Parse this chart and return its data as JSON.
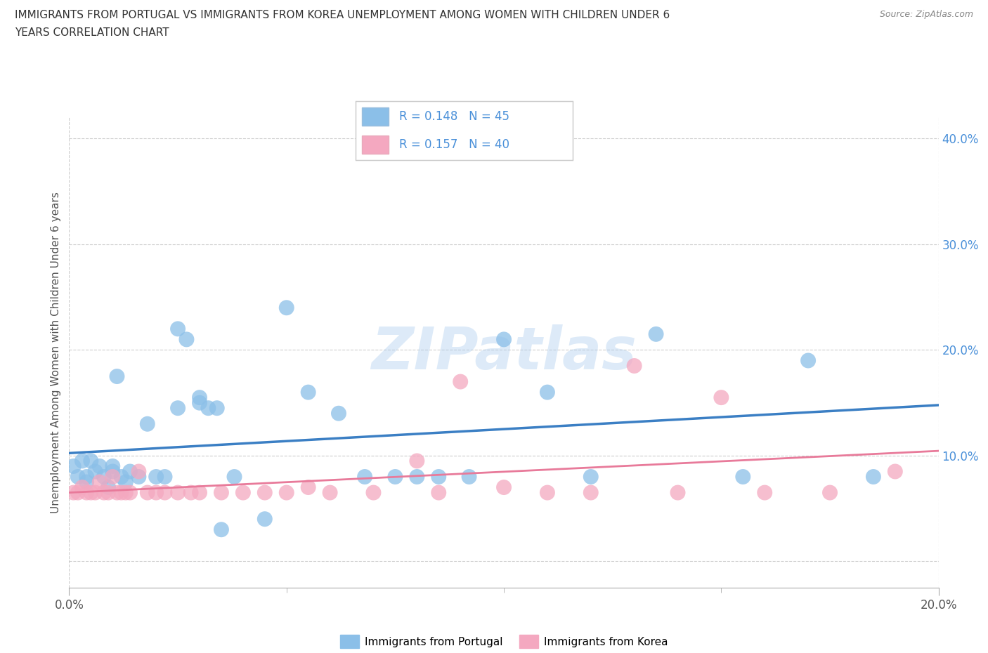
{
  "title_line1": "IMMIGRANTS FROM PORTUGAL VS IMMIGRANTS FROM KOREA UNEMPLOYMENT AMONG WOMEN WITH CHILDREN UNDER 6",
  "title_line2": "YEARS CORRELATION CHART",
  "source": "Source: ZipAtlas.com",
  "ylabel": "Unemployment Among Women with Children Under 6 years",
  "xlim": [
    0.0,
    0.2
  ],
  "ylim": [
    -0.025,
    0.42
  ],
  "xticks_major": [
    0.0,
    0.2
  ],
  "xtick_major_labels": [
    "0.0%",
    "20.0%"
  ],
  "xticks_minor": [
    0.05,
    0.1,
    0.15
  ],
  "yticks": [
    0.0,
    0.1,
    0.2,
    0.3,
    0.4
  ],
  "ytick_labels": [
    "",
    "10.0%",
    "20.0%",
    "30.0%",
    "40.0%"
  ],
  "R_portugal": 0.148,
  "N_portugal": 45,
  "R_korea": 0.157,
  "N_korea": 40,
  "color_portugal": "#8BBFE8",
  "color_korea": "#F4A8C0",
  "trendline_portugal": "#3B7FC4",
  "trendline_korea": "#E87A9A",
  "portugal_x": [
    0.001,
    0.002,
    0.003,
    0.004,
    0.004,
    0.005,
    0.006,
    0.007,
    0.008,
    0.009,
    0.01,
    0.01,
    0.011,
    0.012,
    0.013,
    0.014,
    0.016,
    0.018,
    0.02,
    0.022,
    0.025,
    0.027,
    0.03,
    0.032,
    0.034,
    0.038,
    0.045,
    0.05,
    0.055,
    0.062,
    0.068,
    0.075,
    0.08,
    0.085,
    0.092,
    0.1,
    0.11,
    0.12,
    0.135,
    0.155,
    0.17,
    0.185,
    0.025,
    0.03,
    0.035
  ],
  "portugal_y": [
    0.09,
    0.08,
    0.095,
    0.08,
    0.075,
    0.095,
    0.085,
    0.09,
    0.08,
    0.07,
    0.085,
    0.09,
    0.175,
    0.08,
    0.075,
    0.085,
    0.08,
    0.13,
    0.08,
    0.08,
    0.22,
    0.21,
    0.155,
    0.145,
    0.145,
    0.08,
    0.04,
    0.24,
    0.16,
    0.14,
    0.08,
    0.08,
    0.08,
    0.08,
    0.08,
    0.21,
    0.16,
    0.08,
    0.215,
    0.08,
    0.19,
    0.08,
    0.145,
    0.15,
    0.03
  ],
  "korea_x": [
    0.001,
    0.002,
    0.003,
    0.004,
    0.005,
    0.006,
    0.007,
    0.008,
    0.009,
    0.01,
    0.011,
    0.012,
    0.013,
    0.014,
    0.016,
    0.018,
    0.02,
    0.022,
    0.025,
    0.028,
    0.03,
    0.035,
    0.04,
    0.045,
    0.05,
    0.055,
    0.06,
    0.07,
    0.08,
    0.085,
    0.09,
    0.1,
    0.11,
    0.12,
    0.13,
    0.14,
    0.15,
    0.16,
    0.175,
    0.19
  ],
  "korea_y": [
    0.065,
    0.065,
    0.07,
    0.065,
    0.065,
    0.065,
    0.075,
    0.065,
    0.065,
    0.08,
    0.065,
    0.065,
    0.065,
    0.065,
    0.085,
    0.065,
    0.065,
    0.065,
    0.065,
    0.065,
    0.065,
    0.065,
    0.065,
    0.065,
    0.065,
    0.07,
    0.065,
    0.065,
    0.095,
    0.065,
    0.17,
    0.07,
    0.065,
    0.065,
    0.185,
    0.065,
    0.155,
    0.065,
    0.065,
    0.085
  ],
  "watermark": "ZIPatlas",
  "background_color": "#FFFFFF",
  "grid_color": "#CCCCCC",
  "tick_color_blue": "#4A90D9"
}
